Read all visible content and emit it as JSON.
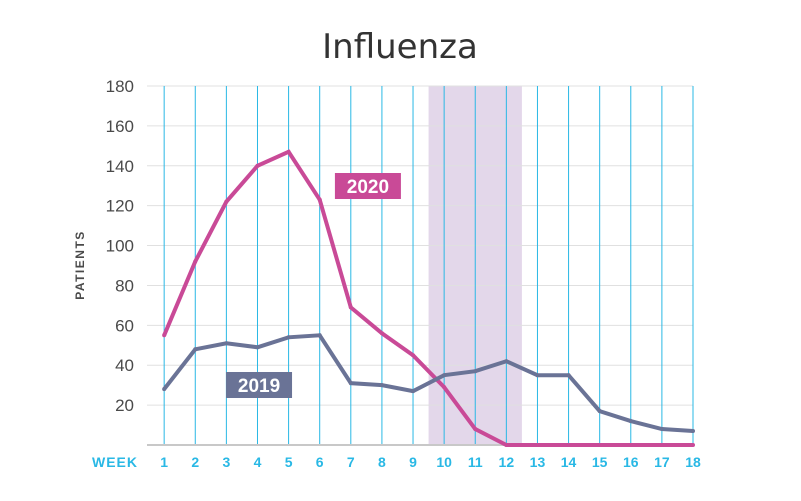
{
  "chart_data": {
    "type": "line",
    "title": "Influenza",
    "xlabel": "WEEK",
    "ylabel": "PATIENTS",
    "x": [
      1,
      2,
      3,
      4,
      5,
      6,
      7,
      8,
      9,
      10,
      11,
      12,
      13,
      14,
      15,
      16,
      17,
      18
    ],
    "y_ticks": [
      20,
      40,
      60,
      80,
      100,
      120,
      140,
      160,
      180
    ],
    "ylim": [
      0,
      180
    ],
    "grid": "vertical",
    "highlight_weeks": [
      9.5,
      12.5
    ],
    "series": [
      {
        "name": "2020",
        "color": "#c94a97",
        "values": [
          55,
          92,
          122,
          140,
          147,
          123,
          69,
          56,
          45,
          29,
          8,
          0,
          0,
          0,
          0,
          0,
          0,
          0
        ]
      },
      {
        "name": "2019",
        "color": "#6a7396",
        "values": [
          28,
          48,
          51,
          49,
          54,
          55,
          31,
          30,
          27,
          35,
          37,
          42,
          35,
          35,
          17,
          12,
          8,
          7
        ]
      }
    ],
    "colors": {
      "grid": "#29b8e5",
      "highlight": "#e3d7ea",
      "baseline": "#c8c8c8"
    }
  }
}
